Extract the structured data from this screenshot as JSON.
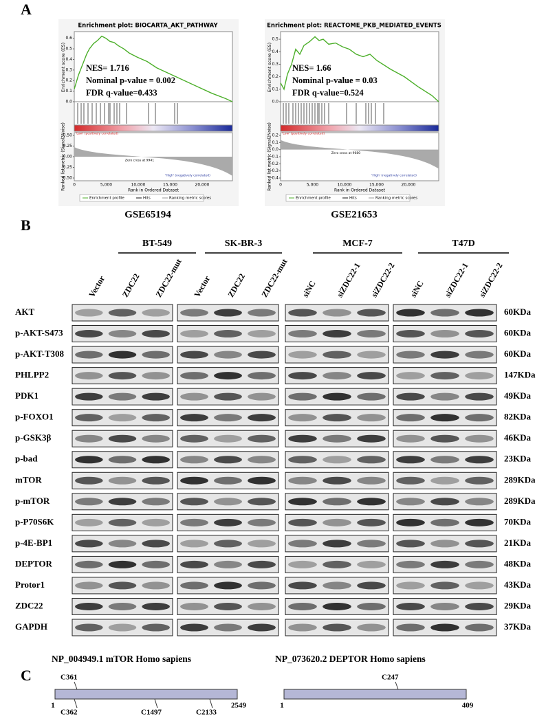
{
  "panel_a": {
    "label": "A",
    "plots": [
      {
        "title": "Enrichment plot: BIOCARTA_AKT_PATHWAY",
        "es_axis_label": "Enrichment score (ES)",
        "metric_axis_label": "Ranked list metric (Signal2Noise)",
        "es_ticks": [
          "0.6",
          "0.5",
          "0.4",
          "0.3",
          "0.2",
          "0.1",
          "0.0"
        ],
        "metric_ticks": [
          "0.50",
          "0.25",
          "0.00",
          "-0.25",
          "-0.50"
        ],
        "x_ticks": [
          "0",
          "5,000",
          "10,000",
          "15,000",
          "20,000"
        ],
        "x_axis_label": "Rank in Ordered Dataset",
        "nes": "NES= 1.716",
        "p_value": "Nominal p-value = 0.002",
        "fdr": "FDR q-value=0.433",
        "zero_cross": "Zero cross at 9941",
        "low_label": "'Low' (positively correlated)",
        "high_label": "'High' (negatively correlated)",
        "legend": [
          "Enrichment profile",
          "Hits",
          "Ranking metric scores"
        ],
        "caption": "GSE65194"
      },
      {
        "title": "Enrichment plot: REACTOME_PKB_MEDIATED_EVENTS",
        "es_axis_label": "Enrichment score (ES)",
        "metric_axis_label": "Ranked list metric (Signal2Noise)",
        "es_ticks": [
          "0.5",
          "0.4",
          "0.3",
          "0.2",
          "0.1",
          "0.0"
        ],
        "metric_ticks": [
          "0.2",
          "0.1",
          "0.0",
          "-0.1",
          "-0.2",
          "-0.3",
          "-0.4"
        ],
        "x_ticks": [
          "0",
          "5,000",
          "10,000",
          "15,000",
          "20,000"
        ],
        "x_axis_label": "Rank in Ordered Dataset",
        "nes": "NES= 1.66",
        "p_value": "Nominal p-value = 0.03",
        "fdr": "FDR q-value=0.524",
        "zero_cross": "Zero cross at 9680",
        "low_label": "'Low' (positively correlated)",
        "high_label": "'High' (negatively correlated)",
        "legend": [
          "Enrichment profile",
          "Hits",
          "Ranking metric scores"
        ],
        "caption": "GSE21653"
      }
    ]
  },
  "panel_b": {
    "label": "B",
    "groups": [
      {
        "name": "BT-549",
        "lanes": [
          "Vector",
          "ZDC22",
          "ZDC22-mut"
        ]
      },
      {
        "name": "SK-BR-3",
        "lanes": [
          "Vector",
          "ZDC22",
          "ZDC22-mut"
        ]
      },
      {
        "name": "MCF-7",
        "lanes": [
          "siNC",
          "siZDC22-1",
          "siZDC22-2"
        ]
      },
      {
        "name": "T47D",
        "lanes": [
          "siNC",
          "siZDC22-1",
          "siZDC22-2"
        ]
      }
    ],
    "rows": [
      {
        "protein": "AKT",
        "size": "60KDa"
      },
      {
        "protein": "p-AKT-S473",
        "size": "60KDa"
      },
      {
        "protein": "p-AKT-T308",
        "size": "60KDa"
      },
      {
        "protein": "PHLPP2",
        "size": "147KDa"
      },
      {
        "protein": "PDK1",
        "size": "49KDa"
      },
      {
        "protein": "p-FOXO1",
        "size": "82KDa"
      },
      {
        "protein": "p-GSK3β",
        "size": "46KDa"
      },
      {
        "protein": "p-bad",
        "size": "23KDa"
      },
      {
        "protein": "mTOR",
        "size": "289KDa"
      },
      {
        "protein": "p-mTOR",
        "size": "289KDa"
      },
      {
        "protein": "p-P70S6K",
        "size": "70KDa"
      },
      {
        "protein": "p-4E-BP1",
        "size": "21KDa"
      },
      {
        "protein": "DEPTOR",
        "size": "48KDa"
      },
      {
        "protein": "Protor1",
        "size": "43KDa"
      },
      {
        "protein": "ZDC22",
        "size": "29KDa"
      },
      {
        "protein": "GAPDH",
        "size": "37KDa"
      }
    ]
  },
  "panel_c": {
    "label": "C",
    "proteins": [
      {
        "title": "NP_004949.1 mTOR Homo sapiens",
        "start": "1",
        "end": "2549",
        "sites": [
          "C361",
          "C362",
          "C1497",
          "C2133"
        ]
      },
      {
        "title": "NP_073620.2  DEPTOR Homo sapiens",
        "start": "1",
        "end": "409",
        "sites": [
          "C247"
        ]
      }
    ]
  }
}
